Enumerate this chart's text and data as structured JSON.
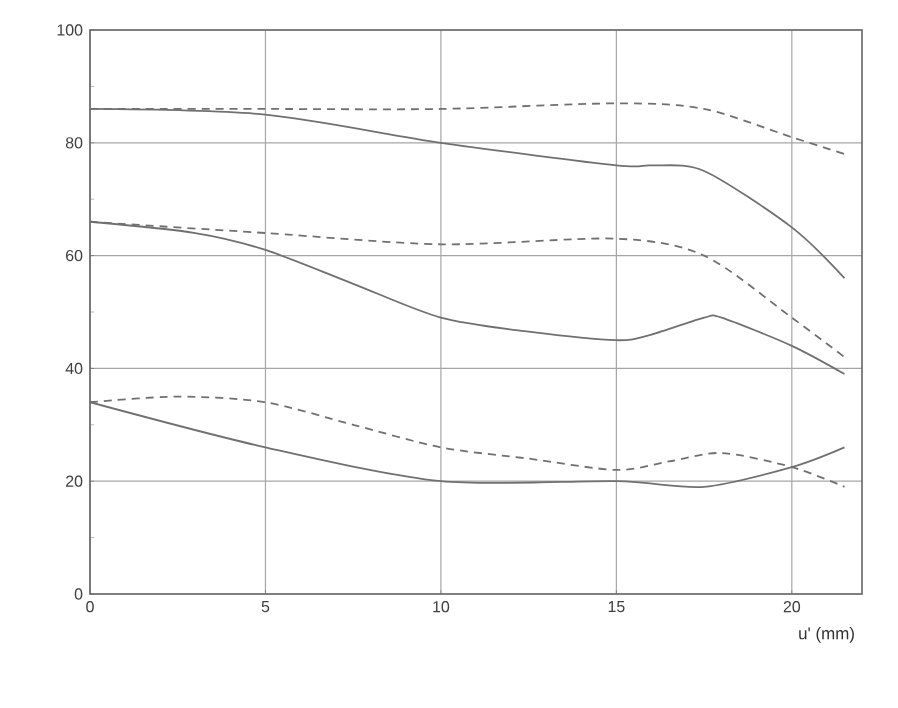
{
  "chart_data": {
    "type": "line",
    "xlabel": "u' (mm)",
    "xlim": [
      0,
      22
    ],
    "ylim": [
      0,
      100
    ],
    "xticks": [
      0,
      5,
      10,
      15,
      20
    ],
    "yticks": [
      0,
      {
        "value": 10,
        "label": null
      },
      20,
      {
        "value": 30,
        "label": null
      },
      40,
      {
        "value": 50,
        "label": null
      },
      60,
      {
        "value": 70,
        "label": null
      },
      80,
      {
        "value": 90,
        "label": null
      },
      100
    ],
    "grid": true,
    "marker": "none",
    "series": [
      {
        "color": "#707070",
        "line_style": "solid",
        "x": [
          0,
          5,
          10,
          15,
          16,
          17.5,
          20,
          21.5
        ],
        "values": [
          86,
          85,
          80,
          76,
          76,
          75,
          65,
          56
        ]
      },
      {
        "color": "#707070",
        "line_style": "dashed",
        "x": [
          0,
          5,
          10,
          15,
          17.5,
          20,
          21.5
        ],
        "values": [
          86,
          86,
          86,
          87,
          86,
          81,
          78
        ]
      },
      {
        "color": "#707070",
        "line_style": "dashed",
        "x": [
          0,
          5,
          10,
          15,
          17.5,
          20,
          21.5
        ],
        "values": [
          66,
          64,
          62,
          63,
          60,
          49,
          42
        ]
      },
      {
        "color": "#707070",
        "line_style": "solid",
        "x": [
          0,
          3,
          5,
          7.5,
          10,
          12.5,
          15,
          16,
          17.5,
          18,
          20,
          21.5
        ],
        "values": [
          66,
          64,
          61,
          55,
          49,
          46.5,
          45,
          46,
          49,
          49,
          44,
          39
        ]
      },
      {
        "color": "#707070",
        "line_style": "dashed",
        "x": [
          0,
          2.5,
          5,
          7.5,
          10,
          12.5,
          15,
          16.5,
          18,
          20,
          21.5
        ],
        "values": [
          34,
          35,
          34,
          30,
          26,
          24,
          22,
          23.5,
          25,
          22.5,
          19
        ]
      },
      {
        "color": "#707070",
        "line_style": "solid",
        "x": [
          0,
          5,
          10,
          15,
          17.5,
          20,
          21.5
        ],
        "values": [
          34,
          26,
          20,
          20,
          19,
          22.5,
          26
        ]
      }
    ]
  }
}
